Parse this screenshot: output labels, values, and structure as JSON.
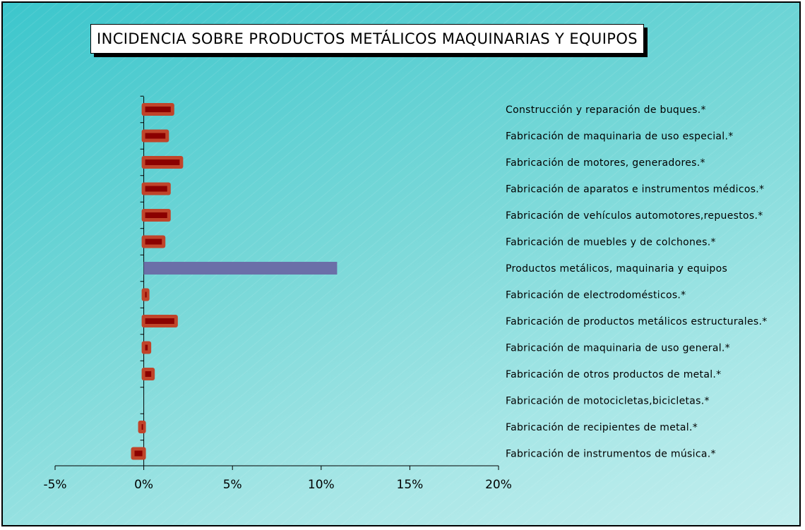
{
  "chart_data": {
    "type": "bar",
    "orientation": "horizontal",
    "title": "INCIDENCIA SOBRE PRODUCTOS METÁLICOS MAQUINARIAS Y EQUIPOS",
    "xlim": [
      -5,
      20
    ],
    "x_ticks": [
      "-5%",
      "0%",
      "5%",
      "10%",
      "15%",
      "20%"
    ],
    "x_tick_values": [
      -5,
      0,
      5,
      10,
      15,
      20
    ],
    "categories": [
      "Construcción y reparación de buques.*",
      "Fabricación de maquinaria de uso especial.*",
      "Fabricación de motores, generadores.*",
      "Fabricación de aparatos e instrumentos médicos.*",
      "Fabricación de vehículos automotores,repuestos.*",
      "Fabricación de muebles y de colchones.*",
      "Productos metálicos, maquinaria y equipos",
      "Fabricación de electrodomésticos.*",
      "Fabricación de productos metálicos estructurales.*",
      "Fabricación de maquinaria de uso general.*",
      "Fabricación de otros productos de metal.*",
      "Fabricación de motocicletas,bicicletas.*",
      "Fabricación de recipientes de metal.*",
      "Fabricación de instrumentos de música.*"
    ],
    "values": [
      1.6,
      1.3,
      2.1,
      1.4,
      1.4,
      1.1,
      10.9,
      0.2,
      1.8,
      0.3,
      0.5,
      0.0,
      -0.2,
      -0.6
    ],
    "highlight_index": 6,
    "grid": false,
    "legend": "none"
  },
  "colors": {
    "bar_fill": "#8b0000",
    "bar_border": "#c0442a",
    "highlight_fill": "#6b6fa8",
    "axis": "#000000",
    "background_start": "#3cc6cc",
    "background_end": "#c3eeee"
  }
}
